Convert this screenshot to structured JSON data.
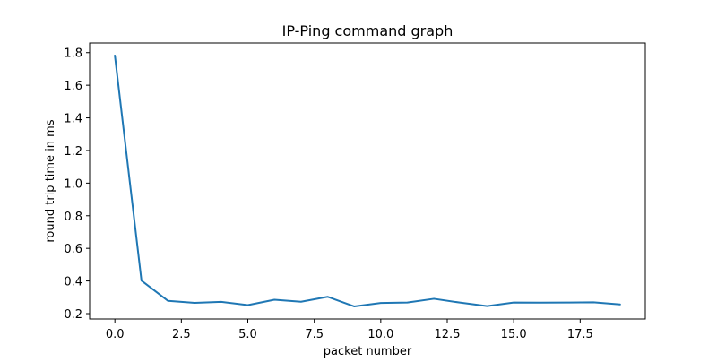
{
  "chart_data": {
    "type": "line",
    "title": "IP-Ping command graph",
    "xlabel": "packet number",
    "ylabel": "round trip time in ms",
    "xlim": [
      -0.95,
      19.95
    ],
    "ylim": [
      0.167,
      1.859
    ],
    "xticks": [
      0.0,
      2.5,
      5.0,
      7.5,
      10.0,
      12.5,
      15.0,
      17.5
    ],
    "xtick_labels": [
      "0.0",
      "2.5",
      "5.0",
      "7.5",
      "10.0",
      "12.5",
      "15.0",
      "17.5"
    ],
    "yticks": [
      0.2,
      0.4,
      0.6,
      0.8,
      1.0,
      1.2,
      1.4,
      1.6,
      1.8
    ],
    "ytick_labels": [
      "0.2",
      "0.4",
      "0.6",
      "0.8",
      "1.0",
      "1.2",
      "1.4",
      "1.6",
      "1.8"
    ],
    "grid": false,
    "legend": "none",
    "series": [
      {
        "color": "#1f77b4",
        "x": [
          0,
          1,
          2,
          3,
          4,
          5,
          6,
          7,
          8,
          9,
          10,
          11,
          12,
          13,
          14,
          15,
          16,
          17,
          18,
          19
        ],
        "values": [
          1.782,
          0.402,
          0.278,
          0.266,
          0.272,
          0.252,
          0.285,
          0.273,
          0.303,
          0.244,
          0.265,
          0.268,
          0.291,
          0.267,
          0.246,
          0.268,
          0.267,
          0.268,
          0.269,
          0.256
        ]
      }
    ]
  }
}
